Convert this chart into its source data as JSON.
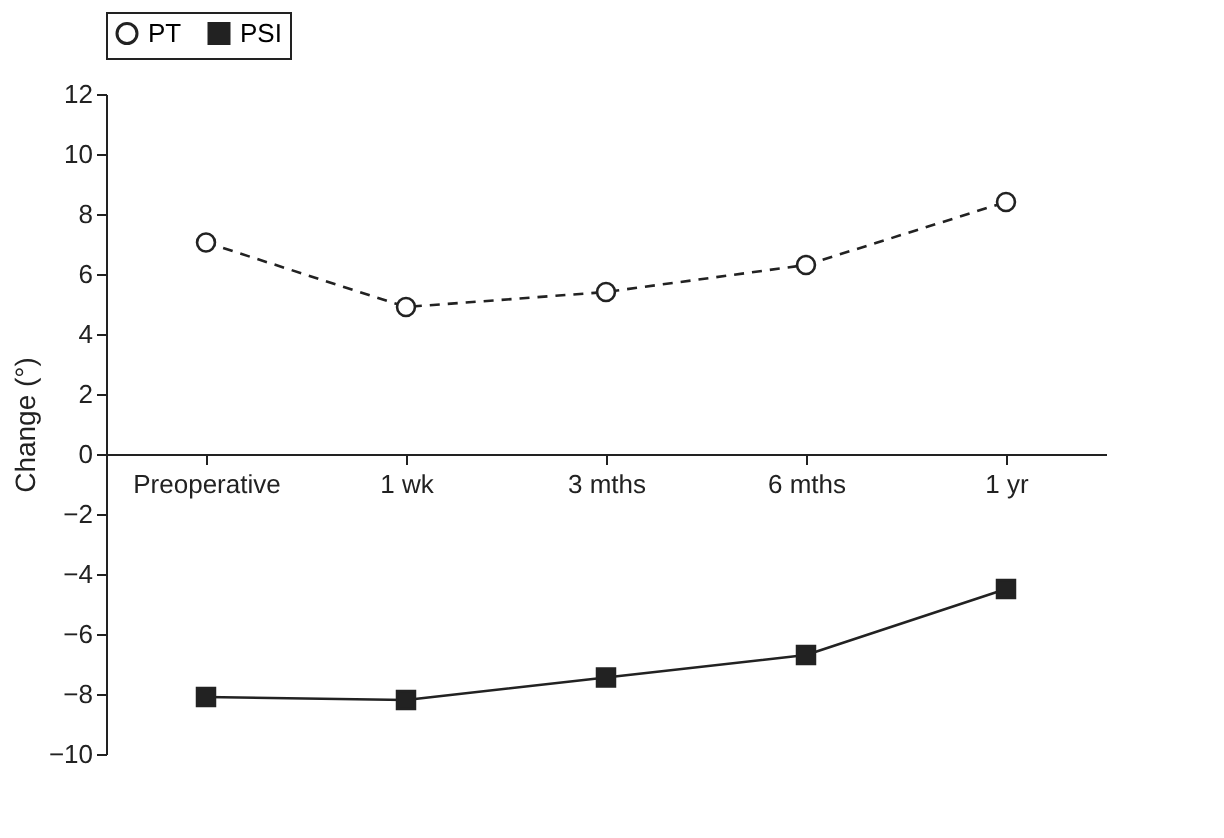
{
  "chart_data": {
    "type": "line",
    "ylabel": "Change (°)",
    "categories": [
      "Preoperative",
      "1 wk",
      "3 mths",
      "6 mths",
      "1 yr"
    ],
    "series": [
      {
        "name": "PT",
        "color": "#222222",
        "values": [
          7.05,
          4.9,
          5.4,
          6.3,
          8.4
        ],
        "marker": "circle",
        "line_style": "dashed"
      },
      {
        "name": "PSI",
        "color": "#222222",
        "values": [
          -8.1,
          -8.2,
          -7.45,
          -6.7,
          -4.5
        ],
        "marker": "square",
        "line_style": "solid"
      }
    ],
    "ylim": [
      -10,
      12
    ],
    "yticks": [
      -10,
      -8,
      -6,
      -4,
      -2,
      0,
      2,
      4,
      6,
      8,
      10,
      12
    ],
    "grid": false,
    "legend": "top"
  }
}
